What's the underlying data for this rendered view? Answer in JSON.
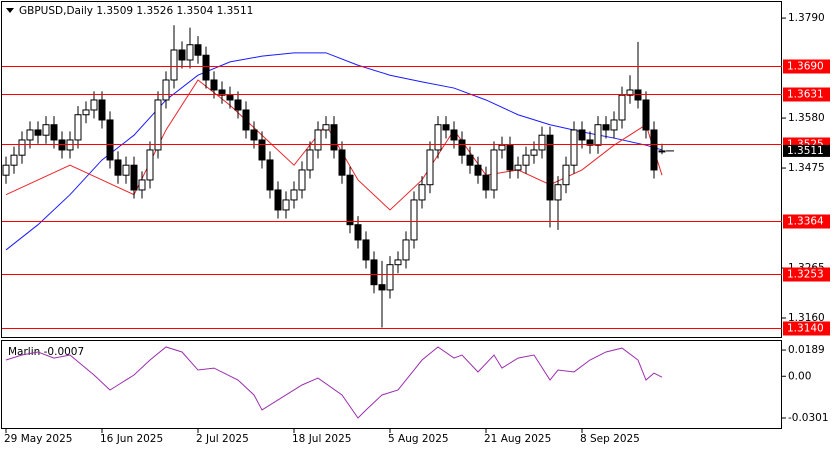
{
  "chart_data": {
    "type": "candlestick",
    "title": "GBPUSD,Daily  1.3509 1.3526 1.3504 1.3511",
    "categories": [
      "29 May 2025",
      null,
      null,
      null,
      null,
      null,
      null,
      null,
      null,
      null,
      null,
      null,
      "16 Jun 2025",
      null,
      null,
      null,
      null,
      null,
      null,
      null,
      null,
      null,
      null,
      null,
      "2 Jul 2025",
      null,
      null,
      null,
      null,
      null,
      null,
      null,
      null,
      null,
      null,
      null,
      "18 Jul 2025",
      null,
      null,
      null,
      null,
      null,
      null,
      null,
      null,
      null,
      null,
      null,
      "5 Aug 2025",
      null,
      null,
      null,
      null,
      null,
      null,
      null,
      null,
      null,
      null,
      null,
      "21 Aug 2025",
      null,
      null,
      null,
      null,
      null,
      null,
      null,
      null,
      null,
      null,
      null,
      "8 Sep 2025",
      null,
      null,
      null,
      null,
      null,
      null,
      null,
      null,
      null,
      null
    ],
    "open": [
      1.346,
      1.3481,
      1.3502,
      1.3534,
      1.3555,
      1.3544,
      1.3566,
      1.3534,
      1.3513,
      1.3534,
      1.3587,
      1.3597,
      1.3618,
      1.3576,
      1.3492,
      1.346,
      1.3481,
      1.3429,
      1.345,
      1.3513,
      1.3618,
      1.366,
      1.3723,
      1.3702,
      1.3734,
      1.3712,
      1.366,
      1.3639,
      1.3628,
      1.3618,
      1.3597,
      1.3555,
      1.3534,
      1.3492,
      1.3429,
      1.3387,
      1.3408,
      1.3429,
      1.3471,
      1.3513,
      1.3555,
      1.3566,
      1.3513,
      1.346,
      1.3356,
      1.3324,
      1.3282,
      1.323,
      1.3219,
      1.3272,
      1.3282,
      1.3324,
      1.3408,
      1.344,
      1.3513,
      1.3566,
      1.3555,
      1.3534,
      1.3502,
      1.3481,
      1.346,
      1.3429,
      1.3513,
      1.3523,
      1.3471,
      1.3481,
      1.3502,
      1.3513,
      1.3544,
      1.3408,
      1.344,
      1.3481,
      1.3555,
      1.3534,
      1.3523,
      1.3566,
      1.3555,
      1.3576,
      1.3628,
      1.3639,
      1.3618,
      1.3555,
      1.3509
    ],
    "high": [
      1.3499,
      1.352,
      1.3552,
      1.3573,
      1.3573,
      1.3584,
      1.3584,
      1.3552,
      1.3552,
      1.3605,
      1.3615,
      1.3636,
      1.3636,
      1.3594,
      1.351,
      1.3499,
      1.3499,
      1.3468,
      1.3531,
      1.3636,
      1.3678,
      1.3775,
      1.3741,
      1.377,
      1.3752,
      1.373,
      1.3678,
      1.3657,
      1.3646,
      1.3636,
      1.3615,
      1.3573,
      1.3552,
      1.351,
      1.3447,
      1.3426,
      1.3447,
      1.3489,
      1.3531,
      1.3573,
      1.3584,
      1.3584,
      1.3531,
      1.3478,
      1.3374,
      1.3342,
      1.33,
      1.328,
      1.329,
      1.33,
      1.3342,
      1.3426,
      1.3458,
      1.3531,
      1.3584,
      1.3584,
      1.3573,
      1.3552,
      1.352,
      1.3499,
      1.3478,
      1.3531,
      1.3541,
      1.3541,
      1.3499,
      1.352,
      1.3531,
      1.3562,
      1.3562,
      1.3458,
      1.3499,
      1.3573,
      1.3573,
      1.3552,
      1.3584,
      1.3584,
      1.3594,
      1.3646,
      1.367,
      1.374,
      1.3636,
      1.3573,
      1.3526
    ],
    "low": [
      1.3442,
      1.3463,
      1.3484,
      1.3516,
      1.3526,
      1.3526,
      1.3516,
      1.3495,
      1.3495,
      1.3516,
      1.3569,
      1.3579,
      1.3558,
      1.3474,
      1.3442,
      1.3442,
      1.3411,
      1.3411,
      1.3432,
      1.3495,
      1.36,
      1.3642,
      1.3684,
      1.3684,
      1.3694,
      1.3642,
      1.3621,
      1.361,
      1.36,
      1.3579,
      1.3537,
      1.3516,
      1.3474,
      1.3411,
      1.3369,
      1.3369,
      1.339,
      1.3411,
      1.3453,
      1.3495,
      1.3537,
      1.3495,
      1.3442,
      1.3338,
      1.3306,
      1.3264,
      1.3212,
      1.314,
      1.3201,
      1.3254,
      1.3264,
      1.3306,
      1.339,
      1.3422,
      1.3495,
      1.3537,
      1.3516,
      1.3484,
      1.3463,
      1.3442,
      1.3411,
      1.3411,
      1.3495,
      1.3453,
      1.3453,
      1.3463,
      1.3484,
      1.3495,
      1.335,
      1.3345,
      1.3422,
      1.3463,
      1.3516,
      1.3505,
      1.3505,
      1.3537,
      1.3537,
      1.3558,
      1.361,
      1.36,
      1.3537,
      1.3453,
      1.3504
    ],
    "close": [
      1.3481,
      1.3502,
      1.3534,
      1.3555,
      1.3544,
      1.3566,
      1.3534,
      1.3513,
      1.3534,
      1.3587,
      1.3597,
      1.3618,
      1.3576,
      1.3492,
      1.346,
      1.3481,
      1.3429,
      1.345,
      1.3513,
      1.3618,
      1.366,
      1.3723,
      1.3702,
      1.3734,
      1.3712,
      1.366,
      1.3639,
      1.3628,
      1.3618,
      1.3597,
      1.3555,
      1.3534,
      1.3492,
      1.3429,
      1.3387,
      1.3408,
      1.3429,
      1.3471,
      1.3513,
      1.3555,
      1.3566,
      1.3513,
      1.346,
      1.3356,
      1.3324,
      1.3282,
      1.323,
      1.3219,
      1.3272,
      1.3282,
      1.3324,
      1.3408,
      1.344,
      1.3513,
      1.3566,
      1.3555,
      1.3534,
      1.3502,
      1.3481,
      1.346,
      1.3429,
      1.3513,
      1.3523,
      1.3471,
      1.3481,
      1.3502,
      1.3513,
      1.3544,
      1.3408,
      1.344,
      1.3481,
      1.3555,
      1.3534,
      1.3523,
      1.3566,
      1.3555,
      1.3576,
      1.3628,
      1.3639,
      1.3618,
      1.3555,
      1.3471,
      1.3511
    ],
    "series": [
      {
        "color": "#1a1aff",
        "x": [
          0,
          4,
          8,
          12,
          16,
          20,
          24,
          28,
          32,
          36,
          40,
          44,
          48,
          52,
          56,
          60,
          64,
          68,
          72,
          76,
          80,
          82
        ],
        "values": [
          1.3303,
          1.3356,
          1.3419,
          1.3492,
          1.3544,
          1.3618,
          1.367,
          1.3698,
          1.371,
          1.3717,
          1.3717,
          1.3691,
          1.367,
          1.3656,
          1.3643,
          1.3618,
          1.3587,
          1.3566,
          1.3551,
          1.3538,
          1.3523,
          1.3513
        ]
      },
      {
        "color": "#e8262a",
        "x": [
          0,
          4,
          8,
          12,
          16,
          20,
          24,
          28,
          32,
          36,
          40,
          44,
          48,
          52,
          56,
          60,
          64,
          68,
          72,
          76,
          80,
          82
        ],
        "values": [
          1.3419,
          1.345,
          1.3481,
          1.345,
          1.3419,
          1.3555,
          1.366,
          1.3607,
          1.3544,
          1.3481,
          1.3566,
          1.345,
          1.3387,
          1.345,
          1.3555,
          1.346,
          1.3471,
          1.344,
          1.3471,
          1.3523,
          1.3566,
          1.346
        ]
      }
    ],
    "levels": [
      {
        "value": 1.369,
        "label": "1.3690"
      },
      1.3631,
      1.3525,
      1.3364,
      1.3253,
      {
        "value": 1.314,
        "label": "1.3140"
      }
    ],
    "level_color": "#ff0000",
    "ylim": [
      1.3118,
      1.3828
    ],
    "yticks": [
      {
        "value": 1.379,
        "label": "1.3790"
      },
      {
        "value": 1.358,
        "label": "1.3580"
      },
      1.3475,
      1.3265,
      {
        "value": 1.316,
        "label": "1.3160"
      }
    ],
    "indicator": {
      "title": "Marlin -0.0007",
      "color": "#9b2fae",
      "x": [
        0,
        2,
        4,
        6,
        8,
        11,
        13,
        14,
        16,
        18,
        20,
        22,
        24,
        26,
        29,
        31,
        32,
        34,
        37,
        39,
        42,
        44,
        45,
        47,
        49,
        51,
        52,
        54,
        56,
        57,
        59,
        61,
        62,
        64,
        66,
        68,
        69,
        71,
        73,
        75,
        77,
        79,
        80,
        81,
        82
      ],
      "values": [
        0.0117,
        0.0153,
        0.0175,
        0.0131,
        0.0153,
        0.0009,
        -0.0099,
        -0.0063,
        0.0009,
        0.0117,
        0.0211,
        0.0175,
        0.0045,
        0.0059,
        -0.0027,
        -0.0135,
        -0.0243,
        -0.0171,
        -0.0063,
        -0.0013,
        -0.0135,
        -0.0301,
        -0.0243,
        -0.0135,
        -0.0099,
        0.0045,
        0.0117,
        0.0211,
        0.0131,
        0.0153,
        0.0031,
        0.0153,
        0.0059,
        0.0131,
        0.0153,
        -0.0027,
        0.0045,
        0.0031,
        0.0117,
        0.0175,
        0.0203,
        0.0117,
        -0.0027,
        0.0023,
        -0.0007
      ],
      "ylim": [
        -0.0373,
        0.0247
      ],
      "yticks": [
        0.0189,
        {
          "value": 0,
          "label": "0.00"
        },
        -0.0301
      ]
    }
  }
}
